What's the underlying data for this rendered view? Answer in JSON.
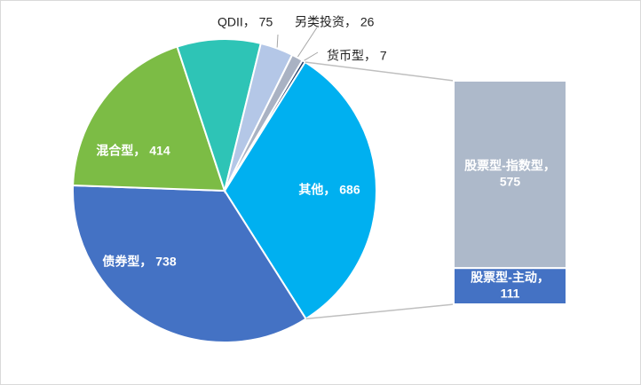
{
  "chart_data": {
    "type": "bar-of-pie",
    "title": "",
    "pie": {
      "slices": [
        {
          "label": "其他",
          "value": 686,
          "color": "#00b0f0",
          "label_style": "inside"
        },
        {
          "label": "债券型",
          "value": 738,
          "color": "#4472c4",
          "label_style": "inside"
        },
        {
          "label": "混合型",
          "value": 414,
          "color": "#7cbc45",
          "label_style": "inside"
        },
        {
          "label": "",
          "value": 190,
          "color": "#2ec4b6",
          "label_style": "none"
        },
        {
          "label": "QDII",
          "value": 75,
          "color": "#b4c7e7",
          "label_style": "outside"
        },
        {
          "label": "另类投资",
          "value": 26,
          "color": "#a9b2c3",
          "label_style": "outside"
        },
        {
          "label": "货币型",
          "value": 7,
          "color": "#1f3864",
          "label_style": "outside"
        }
      ]
    },
    "bar": {
      "breakdown_of": "其他",
      "segments": [
        {
          "label": "股票型-指数型",
          "value": 575,
          "color": "#adb9ca"
        },
        {
          "label": "股票型-主动",
          "value": 111,
          "color": "#4472c4"
        }
      ]
    },
    "separator": "，"
  }
}
